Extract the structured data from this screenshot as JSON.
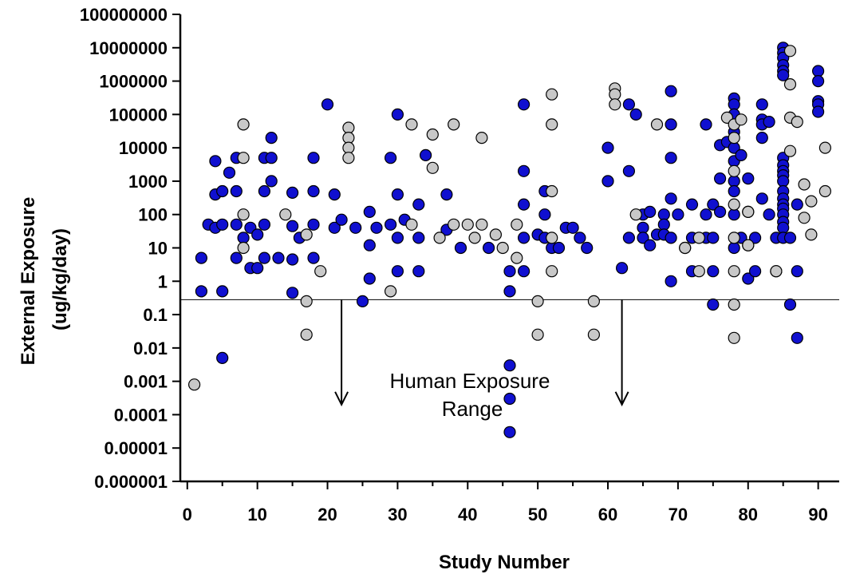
{
  "chart_data": {
    "type": "scatter",
    "title": "",
    "xlabel": "Study Number",
    "ylabel_line1": "External Exposure",
    "ylabel_line2": "(ug/kg/day)",
    "x_range": [
      -1,
      93
    ],
    "y_range": [
      1e-06,
      100000000
    ],
    "y_scale": "log",
    "x_ticks": [
      0,
      10,
      20,
      30,
      40,
      50,
      60,
      70,
      80,
      90
    ],
    "y_ticks": [
      {
        "value": 1e-06,
        "label": "0.000001"
      },
      {
        "value": 1e-05,
        "label": "0.00001"
      },
      {
        "value": 0.0001,
        "label": "0.0001"
      },
      {
        "value": 0.001,
        "label": "0.001"
      },
      {
        "value": 0.01,
        "label": "0.01"
      },
      {
        "value": 0.1,
        "label": "0.1"
      },
      {
        "value": 1,
        "label": "1"
      },
      {
        "value": 10,
        "label": "10"
      },
      {
        "value": 100,
        "label": "100"
      },
      {
        "value": 1000,
        "label": "1000"
      },
      {
        "value": 10000,
        "label": "10000"
      },
      {
        "value": 100000,
        "label": "100000"
      },
      {
        "value": 1000000,
        "label": "1000000"
      },
      {
        "value": 10000000,
        "label": "10000000"
      },
      {
        "value": 100000000,
        "label": "100000000"
      }
    ],
    "grid": false,
    "legend": "none",
    "reference_line": {
      "y": 0.28
    },
    "annotations": {
      "text_line1": "Human Exposure",
      "text_line2": "Range",
      "arrows": [
        {
          "x": 22,
          "from_y": 0.28,
          "to_y": 0.0002
        },
        {
          "x": 62,
          "from_y": 0.28,
          "to_y": 0.0002
        }
      ]
    },
    "colors": {
      "blue": "#1010d0",
      "gray": "#c8c8c8",
      "outline": "#000000",
      "axis": "#000000"
    },
    "series": [
      {
        "color_key": "blue",
        "points": [
          [
            2,
            5
          ],
          [
            2,
            0.5
          ],
          [
            3,
            50
          ],
          [
            4,
            4000
          ],
          [
            4,
            400
          ],
          [
            4,
            40
          ],
          [
            5,
            500
          ],
          [
            5,
            50
          ],
          [
            5,
            0.5
          ],
          [
            5,
            0.005
          ],
          [
            6,
            1800
          ],
          [
            7,
            5000
          ],
          [
            7,
            500
          ],
          [
            7,
            50
          ],
          [
            7,
            5
          ],
          [
            8,
            20
          ],
          [
            9,
            40
          ],
          [
            9,
            2.5
          ],
          [
            10,
            25
          ],
          [
            10,
            2.5
          ],
          [
            11,
            500
          ],
          [
            11,
            5000
          ],
          [
            11,
            50
          ],
          [
            11,
            5
          ],
          [
            12,
            20000
          ],
          [
            12,
            5000
          ],
          [
            12,
            1000
          ],
          [
            13,
            5
          ],
          [
            15,
            450
          ],
          [
            15,
            45
          ],
          [
            15,
            4.5
          ],
          [
            15,
            0.45
          ],
          [
            16,
            20
          ],
          [
            18,
            5000
          ],
          [
            18,
            500
          ],
          [
            18,
            50
          ],
          [
            18,
            5
          ],
          [
            20,
            200000
          ],
          [
            21,
            400
          ],
          [
            21,
            40
          ],
          [
            22,
            70
          ],
          [
            24,
            40
          ],
          [
            25,
            0.25
          ],
          [
            26,
            120
          ],
          [
            26,
            12
          ],
          [
            26,
            1.2
          ],
          [
            27,
            40
          ],
          [
            29,
            5000
          ],
          [
            29,
            50
          ],
          [
            30,
            100000
          ],
          [
            30,
            400
          ],
          [
            30,
            20
          ],
          [
            30,
            2
          ],
          [
            31,
            70
          ],
          [
            33,
            200
          ],
          [
            33,
            20
          ],
          [
            33,
            2
          ],
          [
            34,
            6000
          ],
          [
            37,
            400
          ],
          [
            37,
            35
          ],
          [
            39,
            10
          ],
          [
            43,
            10
          ],
          [
            46,
            2
          ],
          [
            46,
            0.5
          ],
          [
            46,
            0.003
          ],
          [
            46,
            0.0003
          ],
          [
            46,
            3e-05
          ],
          [
            48,
            200000
          ],
          [
            48,
            2000
          ],
          [
            48,
            200
          ],
          [
            48,
            20
          ],
          [
            48,
            2
          ],
          [
            50,
            25
          ],
          [
            51,
            500
          ],
          [
            51,
            100
          ],
          [
            51,
            20
          ],
          [
            52,
            10
          ],
          [
            53,
            10
          ],
          [
            54,
            40
          ],
          [
            55,
            40
          ],
          [
            56,
            20
          ],
          [
            57,
            10
          ],
          [
            60,
            10000
          ],
          [
            60,
            1000
          ],
          [
            62,
            2.5
          ],
          [
            63,
            200000
          ],
          [
            63,
            2000
          ],
          [
            63,
            20
          ],
          [
            64,
            100000
          ],
          [
            65,
            100
          ],
          [
            65,
            40
          ],
          [
            65,
            20
          ],
          [
            66,
            120
          ],
          [
            66,
            12
          ],
          [
            67,
            25
          ],
          [
            68,
            100
          ],
          [
            68,
            50
          ],
          [
            68,
            25
          ],
          [
            69,
            500000
          ],
          [
            69,
            50000
          ],
          [
            69,
            5000
          ],
          [
            69,
            300
          ],
          [
            69,
            20
          ],
          [
            69,
            1
          ],
          [
            70,
            100
          ],
          [
            71,
            10
          ],
          [
            72,
            200
          ],
          [
            72,
            20
          ],
          [
            72,
            2
          ],
          [
            74,
            50000
          ],
          [
            74,
            100
          ],
          [
            74,
            20
          ],
          [
            75,
            200
          ],
          [
            75,
            20
          ],
          [
            75,
            2
          ],
          [
            75,
            0.2
          ],
          [
            76,
            12000
          ],
          [
            76,
            1200
          ],
          [
            76,
            120
          ],
          [
            77,
            15000
          ],
          [
            78,
            300000
          ],
          [
            78,
            200000
          ],
          [
            78,
            100000
          ],
          [
            78,
            30000
          ],
          [
            78,
            10000
          ],
          [
            78,
            4000
          ],
          [
            78,
            1000
          ],
          [
            78,
            500
          ],
          [
            78,
            100
          ],
          [
            78,
            10
          ],
          [
            79,
            6000
          ],
          [
            79,
            20
          ],
          [
            80,
            1200
          ],
          [
            80,
            120
          ],
          [
            80,
            12
          ],
          [
            80,
            1.2
          ],
          [
            81,
            20
          ],
          [
            81,
            2
          ],
          [
            82,
            200000
          ],
          [
            82,
            70000
          ],
          [
            82,
            50000
          ],
          [
            82,
            20000
          ],
          [
            82,
            300
          ],
          [
            83,
            60000
          ],
          [
            83,
            100
          ],
          [
            84,
            2
          ],
          [
            84,
            20
          ],
          [
            85,
            10000000
          ],
          [
            85,
            7000000
          ],
          [
            85,
            5000000
          ],
          [
            85,
            3000000
          ],
          [
            85,
            2000000
          ],
          [
            85,
            1500000
          ],
          [
            85,
            5000
          ],
          [
            85,
            3000
          ],
          [
            85,
            2000
          ],
          [
            85,
            1500
          ],
          [
            85,
            1000
          ],
          [
            85,
            500
          ],
          [
            85,
            300
          ],
          [
            85,
            200
          ],
          [
            85,
            150
          ],
          [
            85,
            100
          ],
          [
            85,
            60
          ],
          [
            85,
            40
          ],
          [
            85,
            20
          ],
          [
            86,
            20
          ],
          [
            86,
            0.2
          ],
          [
            87,
            200
          ],
          [
            87,
            2
          ],
          [
            87,
            0.02
          ],
          [
            90,
            2000000
          ],
          [
            90,
            1000000
          ],
          [
            90,
            250000
          ],
          [
            90,
            200000
          ],
          [
            90,
            120000
          ]
        ]
      },
      {
        "color_key": "gray",
        "points": [
          [
            1,
            0.0008
          ],
          [
            8,
            50000
          ],
          [
            8,
            5000
          ],
          [
            8,
            100
          ],
          [
            8,
            10
          ],
          [
            14,
            100
          ],
          [
            17,
            25
          ],
          [
            17,
            0.25
          ],
          [
            17,
            0.025
          ],
          [
            19,
            2
          ],
          [
            23,
            40000
          ],
          [
            23,
            20000
          ],
          [
            23,
            10000
          ],
          [
            23,
            5000
          ],
          [
            29,
            0.5
          ],
          [
            32,
            50000
          ],
          [
            32,
            50
          ],
          [
            35,
            25000
          ],
          [
            35,
            2500
          ],
          [
            36,
            20
          ],
          [
            38,
            50000
          ],
          [
            38,
            50
          ],
          [
            40,
            50
          ],
          [
            41,
            20
          ],
          [
            42,
            50
          ],
          [
            42,
            20000
          ],
          [
            44,
            25
          ],
          [
            45,
            10
          ],
          [
            47,
            50
          ],
          [
            47,
            5
          ],
          [
            50,
            0.25
          ],
          [
            50,
            0.025
          ],
          [
            52,
            400000
          ],
          [
            52,
            50000
          ],
          [
            52,
            500
          ],
          [
            52,
            20
          ],
          [
            52,
            2
          ],
          [
            58,
            0.25
          ],
          [
            58,
            0.025
          ],
          [
            61,
            600000
          ],
          [
            61,
            400000
          ],
          [
            61,
            200000
          ],
          [
            64,
            100
          ],
          [
            67,
            50000
          ],
          [
            71,
            10
          ],
          [
            73,
            20
          ],
          [
            73,
            2
          ],
          [
            77,
            80000
          ],
          [
            78,
            50000
          ],
          [
            78,
            20000
          ],
          [
            78,
            2000
          ],
          [
            78,
            200
          ],
          [
            78,
            20
          ],
          [
            78,
            2
          ],
          [
            78,
            0.2
          ],
          [
            78,
            0.02
          ],
          [
            79,
            70000
          ],
          [
            80,
            120
          ],
          [
            80,
            12
          ],
          [
            84,
            2
          ],
          [
            86,
            8000000
          ],
          [
            86,
            800000
          ],
          [
            86,
            80000
          ],
          [
            86,
            8000
          ],
          [
            87,
            60000
          ],
          [
            88,
            800
          ],
          [
            88,
            80
          ],
          [
            89,
            250
          ],
          [
            89,
            25
          ],
          [
            91,
            10000
          ],
          [
            91,
            500
          ]
        ]
      }
    ]
  }
}
